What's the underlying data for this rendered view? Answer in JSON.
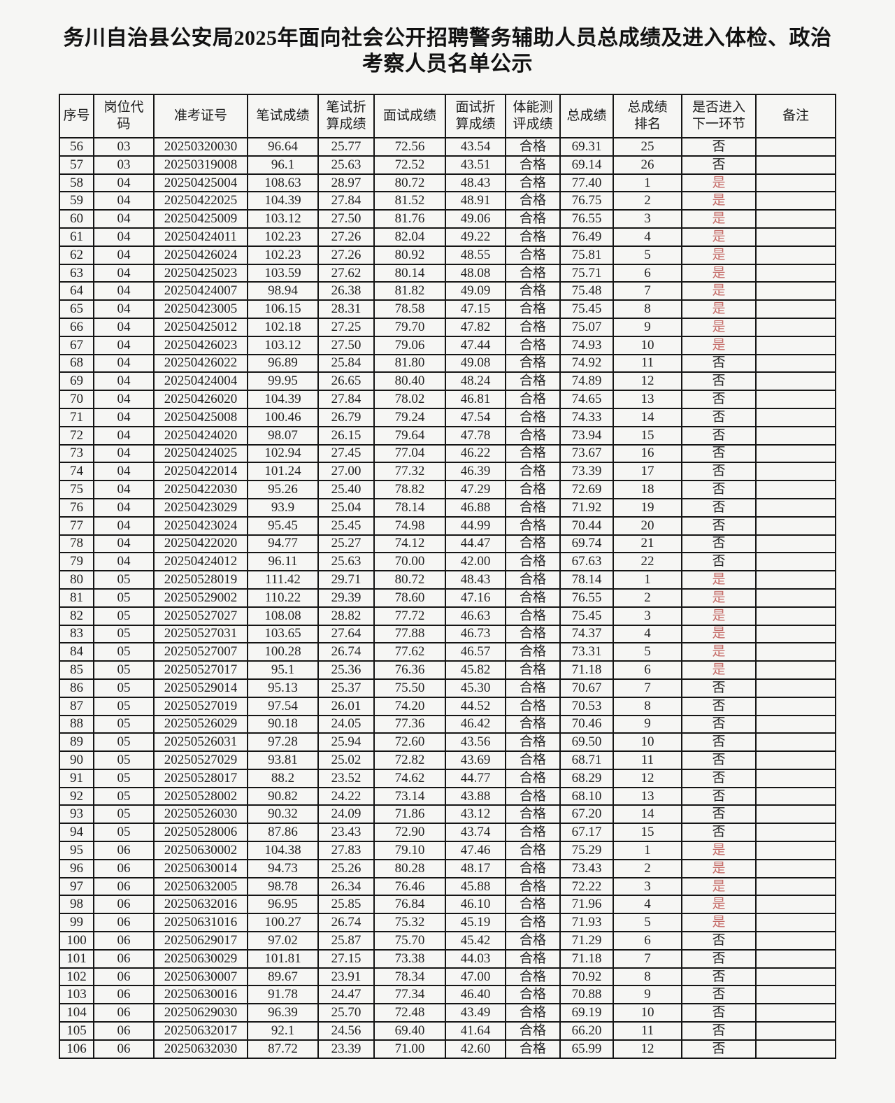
{
  "title": "务川自治县公安局2025年面向社会公开招聘警务辅助人员总成绩及进入体检、政治考察人员名单公示",
  "colors": {
    "enter_yes_red": "#c46a66",
    "text_black": "#1c1c1c"
  },
  "table": {
    "headers": [
      "序号",
      "岗位代\n码",
      "准考证号",
      "笔试成绩",
      "笔试折\n算成绩",
      "面试成绩",
      "面试折\n算成绩",
      "体能测\n评成绩",
      "总成绩",
      "总成绩\n排名",
      "是否进入\n下一环节",
      "备注"
    ],
    "yes_label": "是",
    "no_label": "否",
    "pass_label": "合格",
    "rows": [
      [
        "56",
        "03",
        "20250320030",
        "96.64",
        "25.77",
        "72.56",
        "43.54",
        "合格",
        "69.31",
        "25",
        "否",
        ""
      ],
      [
        "57",
        "03",
        "20250319008",
        "96.1",
        "25.63",
        "72.52",
        "43.51",
        "合格",
        "69.14",
        "26",
        "否",
        ""
      ],
      [
        "58",
        "04",
        "20250425004",
        "108.63",
        "28.97",
        "80.72",
        "48.43",
        "合格",
        "77.40",
        "1",
        "是",
        ""
      ],
      [
        "59",
        "04",
        "20250422025",
        "104.39",
        "27.84",
        "81.52",
        "48.91",
        "合格",
        "76.75",
        "2",
        "是",
        ""
      ],
      [
        "60",
        "04",
        "20250425009",
        "103.12",
        "27.50",
        "81.76",
        "49.06",
        "合格",
        "76.55",
        "3",
        "是",
        ""
      ],
      [
        "61",
        "04",
        "20250424011",
        "102.23",
        "27.26",
        "82.04",
        "49.22",
        "合格",
        "76.49",
        "4",
        "是",
        ""
      ],
      [
        "62",
        "04",
        "20250426024",
        "102.23",
        "27.26",
        "80.92",
        "48.55",
        "合格",
        "75.81",
        "5",
        "是",
        ""
      ],
      [
        "63",
        "04",
        "20250425023",
        "103.59",
        "27.62",
        "80.14",
        "48.08",
        "合格",
        "75.71",
        "6",
        "是",
        ""
      ],
      [
        "64",
        "04",
        "20250424007",
        "98.94",
        "26.38",
        "81.82",
        "49.09",
        "合格",
        "75.48",
        "7",
        "是",
        ""
      ],
      [
        "65",
        "04",
        "20250423005",
        "106.15",
        "28.31",
        "78.58",
        "47.15",
        "合格",
        "75.45",
        "8",
        "是",
        ""
      ],
      [
        "66",
        "04",
        "20250425012",
        "102.18",
        "27.25",
        "79.70",
        "47.82",
        "合格",
        "75.07",
        "9",
        "是",
        ""
      ],
      [
        "67",
        "04",
        "20250426023",
        "103.12",
        "27.50",
        "79.06",
        "47.44",
        "合格",
        "74.93",
        "10",
        "是",
        ""
      ],
      [
        "68",
        "04",
        "20250426022",
        "96.89",
        "25.84",
        "81.80",
        "49.08",
        "合格",
        "74.92",
        "11",
        "否",
        ""
      ],
      [
        "69",
        "04",
        "20250424004",
        "99.95",
        "26.65",
        "80.40",
        "48.24",
        "合格",
        "74.89",
        "12",
        "否",
        ""
      ],
      [
        "70",
        "04",
        "20250426020",
        "104.39",
        "27.84",
        "78.02",
        "46.81",
        "合格",
        "74.65",
        "13",
        "否",
        ""
      ],
      [
        "71",
        "04",
        "20250425008",
        "100.46",
        "26.79",
        "79.24",
        "47.54",
        "合格",
        "74.33",
        "14",
        "否",
        ""
      ],
      [
        "72",
        "04",
        "20250424020",
        "98.07",
        "26.15",
        "79.64",
        "47.78",
        "合格",
        "73.94",
        "15",
        "否",
        ""
      ],
      [
        "73",
        "04",
        "20250424025",
        "102.94",
        "27.45",
        "77.04",
        "46.22",
        "合格",
        "73.67",
        "16",
        "否",
        ""
      ],
      [
        "74",
        "04",
        "20250422014",
        "101.24",
        "27.00",
        "77.32",
        "46.39",
        "合格",
        "73.39",
        "17",
        "否",
        ""
      ],
      [
        "75",
        "04",
        "20250422030",
        "95.26",
        "25.40",
        "78.82",
        "47.29",
        "合格",
        "72.69",
        "18",
        "否",
        ""
      ],
      [
        "76",
        "04",
        "20250423029",
        "93.9",
        "25.04",
        "78.14",
        "46.88",
        "合格",
        "71.92",
        "19",
        "否",
        ""
      ],
      [
        "77",
        "04",
        "20250423024",
        "95.45",
        "25.45",
        "74.98",
        "44.99",
        "合格",
        "70.44",
        "20",
        "否",
        ""
      ],
      [
        "78",
        "04",
        "20250422020",
        "94.77",
        "25.27",
        "74.12",
        "44.47",
        "合格",
        "69.74",
        "21",
        "否",
        ""
      ],
      [
        "79",
        "04",
        "20250424012",
        "96.11",
        "25.63",
        "70.00",
        "42.00",
        "合格",
        "67.63",
        "22",
        "否",
        ""
      ],
      [
        "80",
        "05",
        "20250528019",
        "111.42",
        "29.71",
        "80.72",
        "48.43",
        "合格",
        "78.14",
        "1",
        "是",
        ""
      ],
      [
        "81",
        "05",
        "20250529002",
        "110.22",
        "29.39",
        "78.60",
        "47.16",
        "合格",
        "76.55",
        "2",
        "是",
        ""
      ],
      [
        "82",
        "05",
        "20250527027",
        "108.08",
        "28.82",
        "77.72",
        "46.63",
        "合格",
        "75.45",
        "3",
        "是",
        ""
      ],
      [
        "83",
        "05",
        "20250527031",
        "103.65",
        "27.64",
        "77.88",
        "46.73",
        "合格",
        "74.37",
        "4",
        "是",
        ""
      ],
      [
        "84",
        "05",
        "20250527007",
        "100.28",
        "26.74",
        "77.62",
        "46.57",
        "合格",
        "73.31",
        "5",
        "是",
        ""
      ],
      [
        "85",
        "05",
        "20250527017",
        "95.1",
        "25.36",
        "76.36",
        "45.82",
        "合格",
        "71.18",
        "6",
        "是",
        ""
      ],
      [
        "86",
        "05",
        "20250529014",
        "95.13",
        "25.37",
        "75.50",
        "45.30",
        "合格",
        "70.67",
        "7",
        "否",
        ""
      ],
      [
        "87",
        "05",
        "20250527019",
        "97.54",
        "26.01",
        "74.20",
        "44.52",
        "合格",
        "70.53",
        "8",
        "否",
        ""
      ],
      [
        "88",
        "05",
        "20250526029",
        "90.18",
        "24.05",
        "77.36",
        "46.42",
        "合格",
        "70.46",
        "9",
        "否",
        ""
      ],
      [
        "89",
        "05",
        "20250526031",
        "97.28",
        "25.94",
        "72.60",
        "43.56",
        "合格",
        "69.50",
        "10",
        "否",
        ""
      ],
      [
        "90",
        "05",
        "20250527029",
        "93.81",
        "25.02",
        "72.82",
        "43.69",
        "合格",
        "68.71",
        "11",
        "否",
        ""
      ],
      [
        "91",
        "05",
        "20250528017",
        "88.2",
        "23.52",
        "74.62",
        "44.77",
        "合格",
        "68.29",
        "12",
        "否",
        ""
      ],
      [
        "92",
        "05",
        "20250528002",
        "90.82",
        "24.22",
        "73.14",
        "43.88",
        "合格",
        "68.10",
        "13",
        "否",
        ""
      ],
      [
        "93",
        "05",
        "20250526030",
        "90.32",
        "24.09",
        "71.86",
        "43.12",
        "合格",
        "67.20",
        "14",
        "否",
        ""
      ],
      [
        "94",
        "05",
        "20250528006",
        "87.86",
        "23.43",
        "72.90",
        "43.74",
        "合格",
        "67.17",
        "15",
        "否",
        ""
      ],
      [
        "95",
        "06",
        "20250630002",
        "104.38",
        "27.83",
        "79.10",
        "47.46",
        "合格",
        "75.29",
        "1",
        "是",
        ""
      ],
      [
        "96",
        "06",
        "20250630014",
        "94.73",
        "25.26",
        "80.28",
        "48.17",
        "合格",
        "73.43",
        "2",
        "是",
        ""
      ],
      [
        "97",
        "06",
        "20250632005",
        "98.78",
        "26.34",
        "76.46",
        "45.88",
        "合格",
        "72.22",
        "3",
        "是",
        ""
      ],
      [
        "98",
        "06",
        "20250632016",
        "96.95",
        "25.85",
        "76.84",
        "46.10",
        "合格",
        "71.96",
        "4",
        "是",
        ""
      ],
      [
        "99",
        "06",
        "20250631016",
        "100.27",
        "26.74",
        "75.32",
        "45.19",
        "合格",
        "71.93",
        "5",
        "是",
        ""
      ],
      [
        "100",
        "06",
        "20250629017",
        "97.02",
        "25.87",
        "75.70",
        "45.42",
        "合格",
        "71.29",
        "6",
        "否",
        ""
      ],
      [
        "101",
        "06",
        "20250630029",
        "101.81",
        "27.15",
        "73.38",
        "44.03",
        "合格",
        "71.18",
        "7",
        "否",
        ""
      ],
      [
        "102",
        "06",
        "20250630007",
        "89.67",
        "23.91",
        "78.34",
        "47.00",
        "合格",
        "70.92",
        "8",
        "否",
        ""
      ],
      [
        "103",
        "06",
        "20250630016",
        "91.78",
        "24.47",
        "77.34",
        "46.40",
        "合格",
        "70.88",
        "9",
        "否",
        ""
      ],
      [
        "104",
        "06",
        "20250629030",
        "96.39",
        "25.70",
        "72.48",
        "43.49",
        "合格",
        "69.19",
        "10",
        "否",
        ""
      ],
      [
        "105",
        "06",
        "20250632017",
        "92.1",
        "24.56",
        "69.40",
        "41.64",
        "合格",
        "66.20",
        "11",
        "否",
        ""
      ],
      [
        "106",
        "06",
        "20250632030",
        "87.72",
        "23.39",
        "71.00",
        "42.60",
        "合格",
        "65.99",
        "12",
        "否",
        ""
      ]
    ]
  }
}
